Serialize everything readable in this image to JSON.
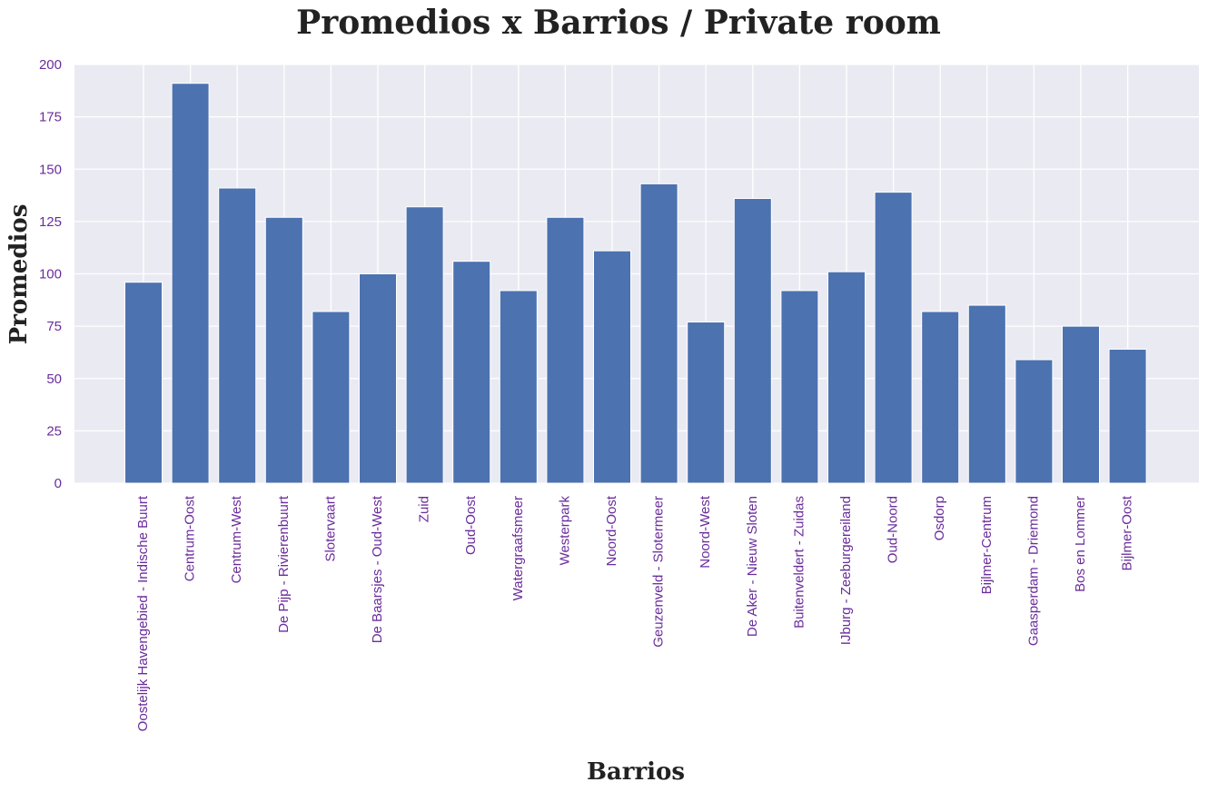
{
  "chart_data": {
    "type": "bar",
    "title": "Promedios x Barrios / Private room",
    "xlabel": "Barrios",
    "ylabel": "Promedios",
    "ylim": [
      0,
      200
    ],
    "yticks": [
      0,
      25,
      50,
      75,
      100,
      125,
      150,
      175,
      200
    ],
    "grid": true,
    "categories": [
      "Oostelijk Havengebied - Indische Buurt",
      "Centrum-Oost",
      "Centrum-West",
      "De Pijp - Rivierenbuurt",
      "Slotervaart",
      "De Baarsjes - Oud-West",
      "Zuid",
      "Oud-Oost",
      "Watergraafsmeer",
      "Westerpark",
      "Noord-Oost",
      "Geuzenveld - Slotermeer",
      "Noord-West",
      "De Aker - Nieuw Sloten",
      "Buitenveldert - Zuidas",
      "IJburg - Zeeburgereiland",
      "Oud-Noord",
      "Osdorp",
      "Bijlmer-Centrum",
      "Gaasperdam - Driemond",
      "Bos en Lommer",
      "Bijlmer-Oost"
    ],
    "values": [
      96,
      191,
      141,
      127,
      82,
      100,
      132,
      106,
      92,
      127,
      111,
      143,
      77,
      136,
      92,
      101,
      139,
      82,
      85,
      59,
      75,
      64
    ],
    "colors": {
      "bar": "#4c72b0",
      "plot_bg": "#eaeaf2",
      "grid": "#ffffff",
      "tick_text": "#6a2c9c",
      "title_text": "#222222"
    }
  }
}
